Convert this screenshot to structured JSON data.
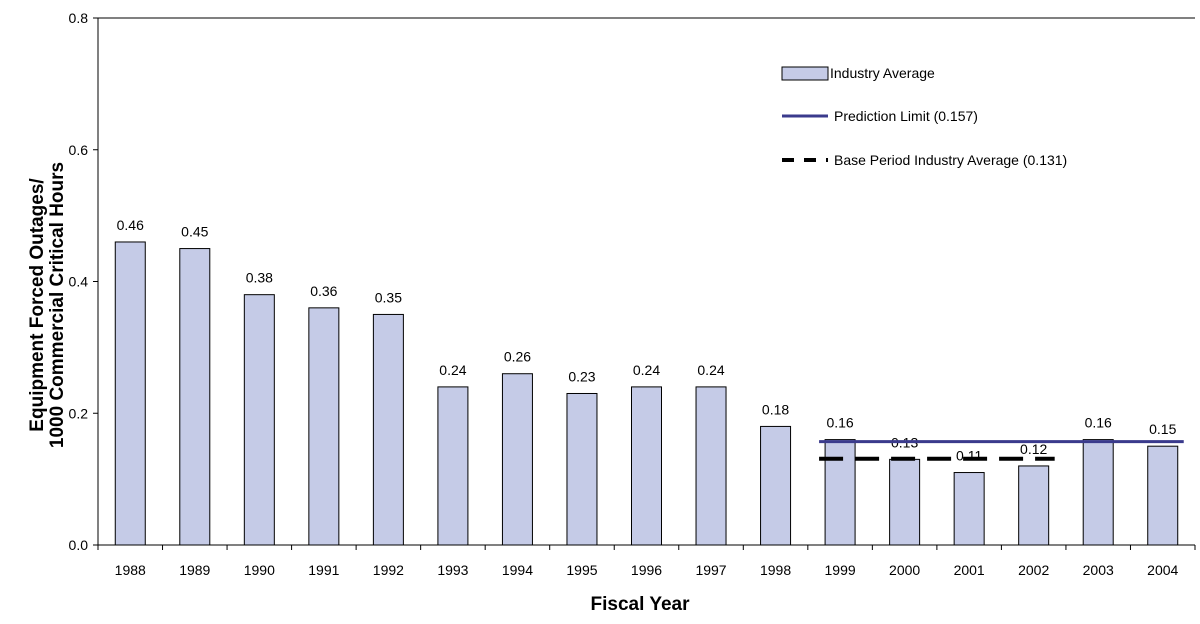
{
  "chart_data": {
    "type": "bar",
    "categories": [
      "1988",
      "1989",
      "1990",
      "1991",
      "1992",
      "1993",
      "1994",
      "1995",
      "1996",
      "1997",
      "1998",
      "1999",
      "2000",
      "2001",
      "2002",
      "2003",
      "2004"
    ],
    "series": [
      {
        "name": "Industry Average",
        "values": [
          0.46,
          0.45,
          0.38,
          0.36,
          0.35,
          0.24,
          0.26,
          0.23,
          0.24,
          0.24,
          0.18,
          0.16,
          0.13,
          0.11,
          0.12,
          0.16,
          0.15
        ],
        "labels": [
          "0.46",
          "0.45",
          "0.38",
          "0.36",
          "0.35",
          "0.24",
          "0.26",
          "0.23",
          "0.24",
          "0.24",
          "0.18",
          "0.16",
          "0.13",
          "0.11",
          "0.12",
          "0.16",
          "0.15"
        ],
        "color": "#c5cbe7"
      }
    ],
    "reference_lines": [
      {
        "name": "Prediction Limit (0.157)",
        "value": 0.157,
        "from": "1999",
        "to": "2004",
        "style": "solid",
        "color": "#3a3a8c"
      },
      {
        "name": "Base Period Industry Average (0.131)",
        "value": 0.131,
        "from": "1999",
        "to": "2002",
        "style": "dashed",
        "color": "#000000"
      }
    ],
    "xlabel": "Fiscal Year",
    "ylabel_line1": "Equipment Forced Outages/",
    "ylabel_line2": "1000 Commercial Critical Hours",
    "ylim": [
      0,
      0.8
    ],
    "yticks": [
      "0.0",
      "0.2",
      "0.4",
      "0.6",
      "0.8"
    ],
    "grid": false,
    "legend_position": "top-right",
    "legend": [
      "Industry Average",
      "Prediction Limit (0.157)",
      "Base Period Industry Average (0.131)"
    ]
  }
}
